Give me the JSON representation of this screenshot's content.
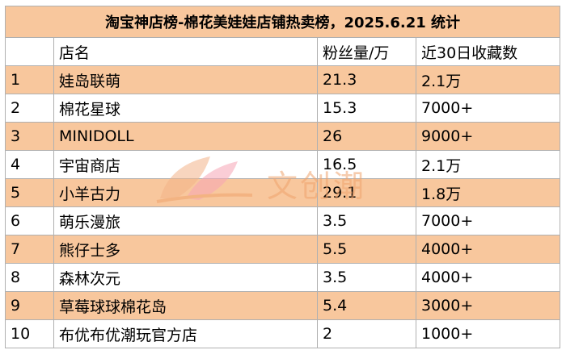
{
  "title": "淘宝神店榜-棉花美娃娃店铺热卖榜，2025.6.21 统计",
  "headers": [
    "",
    "店名",
    "粉丝量/万",
    "近30日收藏数"
  ],
  "rows": [
    [
      "1",
      "娃岛联萌",
      "21.3",
      "2.1万"
    ],
    [
      "2",
      "棉花星球",
      "15.3",
      "7000+"
    ],
    [
      "3",
      "MINIDOLL",
      "26",
      "9000+"
    ],
    [
      "4",
      "宇宙商店",
      "16.5",
      "2.1万"
    ],
    [
      "5",
      "小羊古力",
      "29.1",
      "1.8万"
    ],
    [
      "6",
      "萌乐漫旅",
      "3.5",
      "7000+"
    ],
    [
      "7",
      "熊仔士多",
      "5.5",
      "4000+"
    ],
    [
      "8",
      "森林次元",
      "3.5",
      "4000+"
    ],
    [
      "9",
      "草莓球球棉花岛",
      "5.4",
      "3000+"
    ],
    [
      "10",
      "布优布优潮玩官方店",
      "2",
      "1000+"
    ]
  ],
  "watermark": "文创潮",
  "colors": {
    "band": "#f8c79d",
    "white": "#ffffff",
    "border": "#b0b0b0",
    "watermark": "#f0a36c"
  }
}
